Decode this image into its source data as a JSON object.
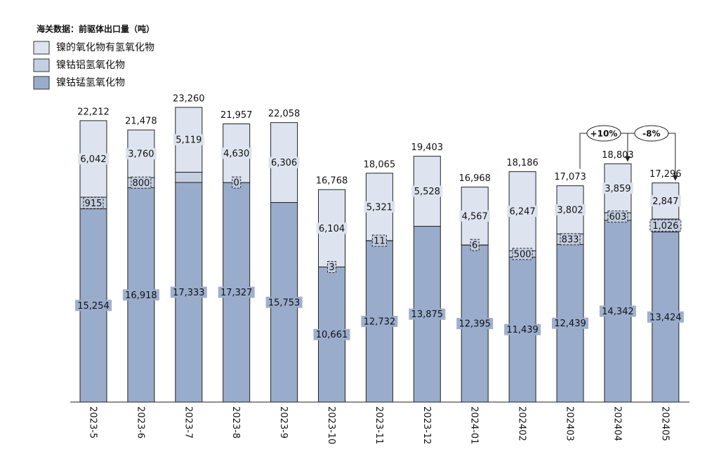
{
  "chart_data": {
    "type": "stacked_bar",
    "title": "海关数据：前驱体出口量（吨）",
    "categories": [
      "2023-5",
      "2023-6",
      "2023-7",
      "2023-8",
      "2023-9",
      "2023-10",
      "2023-11",
      "2023-12",
      "2024-01",
      "202402",
      "202403",
      "202404",
      "202405"
    ],
    "series": [
      {
        "name": "镍钴锰氢氧化物",
        "color": "#9aaccb",
        "values": [
          15254,
          16918,
          17333,
          17327,
          15753,
          10661,
          12732,
          13875,
          12395,
          11439,
          12439,
          14342,
          13424
        ],
        "value_labels": [
          "15,254",
          "16,918",
          "17,333",
          "17,327",
          "15,753",
          "10,661",
          "12,732",
          "13,875",
          "12,395",
          "11,439",
          "12,439",
          "14,342",
          "13,424"
        ]
      },
      {
        "name": "镍钴铝氢氧化物",
        "color": "#c4cfe2",
        "values": [
          915,
          800,
          808,
          0,
          0,
          3,
          11,
          0,
          6,
          500,
          833,
          603,
          1026
        ],
        "value_labels": [
          "915",
          "800",
          null,
          "0",
          null,
          "3",
          "11",
          null,
          "6",
          "500",
          "833",
          "603",
          "1,026"
        ]
      },
      {
        "name": "镍的氧化物有氢氧化物",
        "color": "#dde4ef",
        "values": [
          6042,
          3760,
          5119,
          4630,
          6306,
          6104,
          5321,
          5528,
          4567,
          6247,
          3802,
          3859,
          2847
        ],
        "value_labels": [
          "6,042",
          "3,760",
          "5,119",
          "4,630",
          "6,306",
          "6,104",
          "5,321",
          "5,528",
          "4,567",
          "6,247",
          "3,802",
          "3,859",
          "2,847"
        ]
      }
    ],
    "totals": [
      22212,
      21478,
      23260,
      21957,
      22058,
      16768,
      18065,
      19403,
      16968,
      18186,
      17073,
      18803,
      17296
    ],
    "total_labels": [
      "22,212",
      "21,478",
      "23,260",
      "21,957",
      "22,058",
      "16,768",
      "18,065",
      "19,403",
      "16,968",
      "18,186",
      "17,073",
      "18,803",
      "17,296"
    ],
    "annotations": [
      "+10%",
      "-8%"
    ],
    "legend": "top-left"
  }
}
